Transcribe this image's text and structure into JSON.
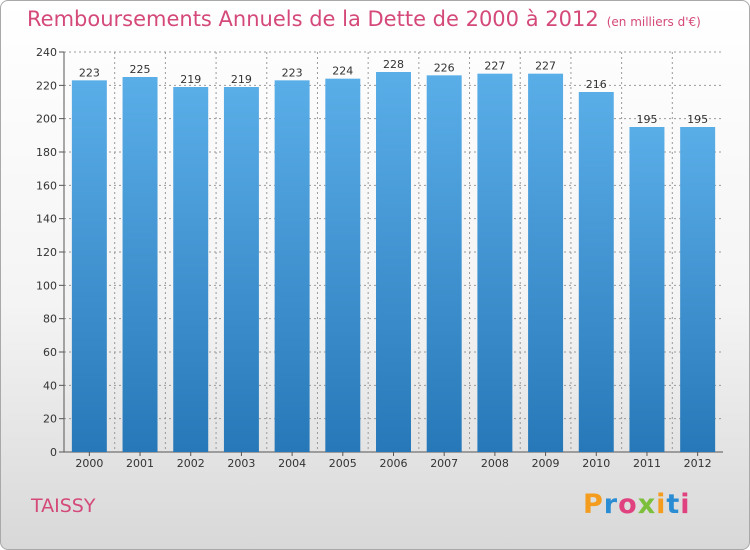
{
  "title": "Remboursements Annuels de la Dette de 2000 à 2012",
  "unit_note": "(en milliers d'€)",
  "commune": "TAISSY",
  "brand": {
    "letters": [
      "P",
      "r",
      "o",
      "x",
      "i",
      "t",
      "i"
    ],
    "colors": [
      "#f39c1e",
      "#2a8dd4",
      "#e0427f",
      "#7bbf3a",
      "#f39c1e",
      "#2a8dd4",
      "#e0427f"
    ]
  },
  "colors": {
    "bar_top": "#5aaee8",
    "bar_bottom": "#2778b8",
    "title": "#d4497a",
    "grid": "#9a9a9a"
  },
  "chart_data": {
    "type": "bar",
    "categories": [
      "2000",
      "2001",
      "2002",
      "2003",
      "2004",
      "2005",
      "2006",
      "2007",
      "2008",
      "2009",
      "2010",
      "2011",
      "2012"
    ],
    "values": [
      223,
      225,
      219,
      219,
      223,
      224,
      228,
      226,
      227,
      227,
      216,
      195,
      195
    ],
    "ylim": [
      0,
      240
    ],
    "yticks": [
      0,
      20,
      40,
      60,
      80,
      100,
      120,
      140,
      160,
      180,
      200,
      220,
      240
    ],
    "grid": true,
    "xlabel": "",
    "ylabel": ""
  }
}
